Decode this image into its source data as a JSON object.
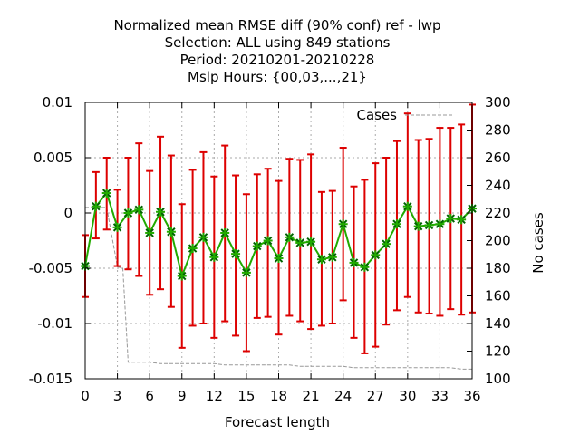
{
  "chart_data": {
    "type": "line",
    "title_lines": [
      "Normalized mean RMSE diff (90% conf) ref - lwp",
      "Selection: ALL using   849 stations",
      "Period: 20210201-20210228",
      "Mslp   Hours: {00,03,...,21}"
    ],
    "xlabel": "Forecast length",
    "ylabel": "",
    "y2label": "No cases",
    "xlim": [
      0,
      36
    ],
    "ylim": [
      -0.015,
      0.01
    ],
    "y2lim": [
      100,
      300
    ],
    "x_ticks": [
      0,
      3,
      6,
      9,
      12,
      15,
      18,
      21,
      24,
      27,
      30,
      33,
      36
    ],
    "y_ticks": [
      -0.015,
      -0.01,
      -0.005,
      0,
      0.005,
      0.01
    ],
    "y_tick_labels": [
      "-0.015",
      "-0.01",
      "-0.005",
      "0",
      "0.005",
      "0.01"
    ],
    "y2_ticks": [
      100,
      120,
      140,
      160,
      180,
      200,
      220,
      240,
      260,
      280,
      300
    ],
    "grid": true,
    "legend": {
      "position": "top-right",
      "entries": [
        "Cases"
      ]
    },
    "colors": {
      "line": "#22aa00",
      "marker": "#006400",
      "errorbar": "#dd0000",
      "cases": "#999999",
      "grid": "#aaaaaa"
    },
    "x": [
      0,
      1,
      2,
      3,
      4,
      5,
      6,
      7,
      8,
      9,
      10,
      11,
      12,
      13,
      14,
      15,
      16,
      17,
      18,
      19,
      20,
      21,
      22,
      23,
      24,
      25,
      26,
      27,
      28,
      29,
      30,
      31,
      32,
      33,
      34,
      35,
      36
    ],
    "series": [
      {
        "values": [
          -0.0048,
          0.0006,
          0.0018,
          -0.0013,
          0.0,
          0.0003,
          -0.0018,
          0.0001,
          -0.0017,
          -0.0057,
          -0.0032,
          -0.0022,
          -0.004,
          -0.0018,
          -0.0037,
          -0.0054,
          -0.003,
          -0.0025,
          -0.0041,
          -0.0022,
          -0.0027,
          -0.0026,
          -0.0042,
          -0.004,
          -0.001,
          -0.0045,
          -0.0049,
          -0.0038,
          -0.0028,
          -0.001,
          0.0006,
          -0.0012,
          -0.0011,
          -0.001,
          -0.0005,
          -0.0006,
          0.0004
        ],
        "lower": [
          -0.0076,
          -0.0023,
          -0.0015,
          -0.0048,
          -0.0051,
          -0.0057,
          -0.0074,
          -0.0069,
          -0.0085,
          -0.0122,
          -0.0102,
          -0.01,
          -0.0113,
          -0.0098,
          -0.0111,
          -0.0125,
          -0.0095,
          -0.0094,
          -0.011,
          -0.0093,
          -0.0098,
          -0.0105,
          -0.0102,
          -0.01,
          -0.0079,
          -0.0113,
          -0.0127,
          -0.0121,
          -0.0101,
          -0.0088,
          -0.0076,
          -0.009,
          -0.0091,
          -0.0093,
          -0.0087,
          -0.0092,
          -0.009
        ]
      }
    ],
    "upper": [
      -0.002,
      0.0037,
      0.005,
      0.0021,
      0.005,
      0.0063,
      0.0038,
      0.0069,
      0.0052,
      0.0008,
      0.0039,
      0.0055,
      0.0033,
      0.0061,
      0.0034,
      0.0017,
      0.0035,
      0.004,
      0.0029,
      0.0049,
      0.0048,
      0.0053,
      0.0019,
      0.002,
      0.0059,
      0.0024,
      0.003,
      0.0045,
      0.005,
      0.0065,
      0.009,
      0.0066,
      0.0067,
      0.0077,
      0.0077,
      0.008,
      0.0098
    ],
    "cases": {
      "name": "Cases",
      "x": [
        0,
        1,
        2,
        3,
        3.5,
        4,
        5,
        6,
        7,
        8,
        9,
        10,
        11,
        12,
        13,
        14,
        15,
        16,
        17,
        18,
        19,
        20,
        21,
        22,
        23,
        24,
        25,
        26,
        27,
        28,
        29,
        30,
        31,
        32,
        33,
        34,
        35,
        36
      ],
      "values": [
        224,
        224,
        224,
        181,
        180,
        112,
        112,
        112,
        111,
        111,
        111,
        111,
        111,
        111,
        110,
        110,
        110,
        110,
        110,
        110,
        110,
        109,
        109,
        109,
        109,
        109,
        108,
        108,
        108,
        108,
        108,
        108,
        108,
        108,
        108,
        108,
        107,
        107
      ]
    }
  }
}
